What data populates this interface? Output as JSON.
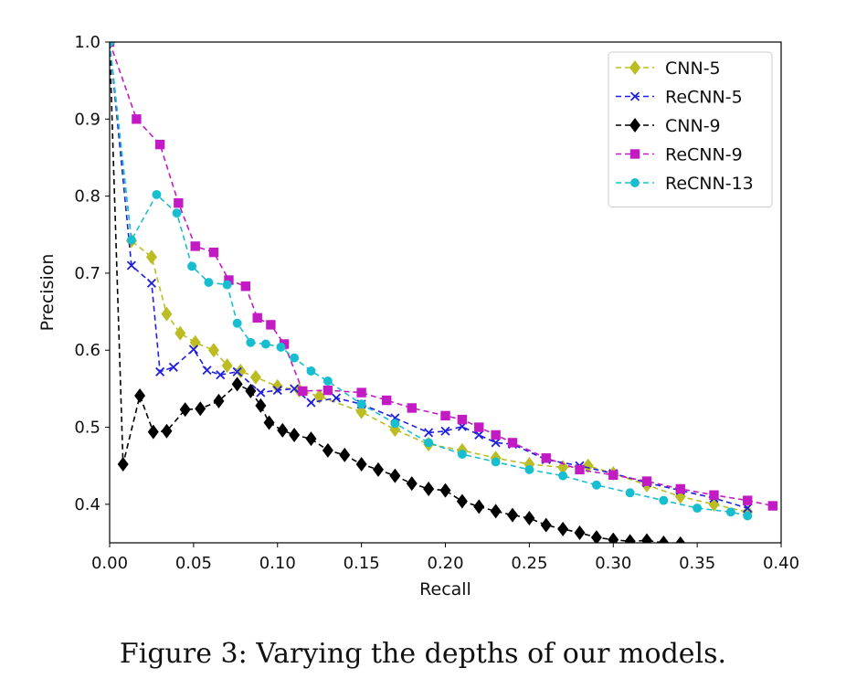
{
  "caption": "Figure 3: Varying the depths of our models.",
  "chart_data": {
    "type": "line",
    "xlabel": "Recall",
    "ylabel": "Precision",
    "xlim": [
      0.0,
      0.4
    ],
    "ylim": [
      0.35,
      1.0
    ],
    "xticks": [
      0.0,
      0.05,
      0.1,
      0.15,
      0.2,
      0.25,
      0.3,
      0.35,
      0.4
    ],
    "xtick_labels": [
      "0.00",
      "0.05",
      "0.10",
      "0.15",
      "0.20",
      "0.25",
      "0.30",
      "0.35",
      "0.40"
    ],
    "yticks": [
      0.4,
      0.5,
      0.6,
      0.7,
      0.8,
      0.9,
      1.0
    ],
    "ytick_labels": [
      "0.4",
      "0.5",
      "0.6",
      "0.7",
      "0.8",
      "0.9",
      "1.0"
    ],
    "grid": false,
    "legend_position": "top-right",
    "series": [
      {
        "name": "CNN-5",
        "color": "#bcbd22",
        "marker": "diamond",
        "x": [
          0.0,
          0.013,
          0.025,
          0.034,
          0.042,
          0.051,
          0.062,
          0.07,
          0.078,
          0.087,
          0.1,
          0.113,
          0.125,
          0.15,
          0.17,
          0.19,
          0.21,
          0.23,
          0.25,
          0.27,
          0.285,
          0.3,
          0.32,
          0.34,
          0.36,
          0.38
        ],
        "y": [
          1.0,
          0.742,
          0.721,
          0.647,
          0.622,
          0.61,
          0.6,
          0.58,
          0.573,
          0.565,
          0.553,
          0.548,
          0.54,
          0.52,
          0.497,
          0.478,
          0.47,
          0.46,
          0.452,
          0.448,
          0.45,
          0.44,
          0.425,
          0.41,
          0.4,
          0.39
        ]
      },
      {
        "name": "ReCNN-5",
        "color": "#1f1fe0",
        "marker": "x",
        "x": [
          0.0,
          0.013,
          0.025,
          0.03,
          0.038,
          0.05,
          0.058,
          0.066,
          0.076,
          0.09,
          0.1,
          0.11,
          0.12,
          0.135,
          0.15,
          0.17,
          0.19,
          0.2,
          0.21,
          0.22,
          0.23,
          0.24,
          0.26,
          0.28,
          0.3,
          0.32,
          0.34,
          0.36,
          0.38
        ],
        "y": [
          1.0,
          0.71,
          0.687,
          0.572,
          0.578,
          0.601,
          0.574,
          0.568,
          0.572,
          0.545,
          0.548,
          0.55,
          0.532,
          0.538,
          0.53,
          0.512,
          0.493,
          0.495,
          0.501,
          0.49,
          0.48,
          0.478,
          0.458,
          0.45,
          0.44,
          0.428,
          0.418,
          0.408,
          0.395
        ]
      },
      {
        "name": "CNN-9",
        "color": "#000000",
        "marker": "diamond",
        "x": [
          0.0,
          0.008,
          0.018,
          0.026,
          0.034,
          0.045,
          0.054,
          0.065,
          0.076,
          0.084,
          0.09,
          0.095,
          0.103,
          0.11,
          0.12,
          0.13,
          0.14,
          0.15,
          0.16,
          0.17,
          0.18,
          0.19,
          0.2,
          0.21,
          0.22,
          0.23,
          0.24,
          0.25,
          0.26,
          0.27,
          0.28,
          0.29,
          0.3,
          0.31,
          0.32,
          0.33,
          0.34
        ],
        "y": [
          1.0,
          0.452,
          0.541,
          0.494,
          0.495,
          0.523,
          0.524,
          0.534,
          0.556,
          0.547,
          0.528,
          0.506,
          0.496,
          0.49,
          0.485,
          0.47,
          0.464,
          0.452,
          0.445,
          0.437,
          0.427,
          0.42,
          0.418,
          0.404,
          0.397,
          0.391,
          0.386,
          0.382,
          0.373,
          0.368,
          0.363,
          0.357,
          0.354,
          0.352,
          0.353,
          0.35,
          0.349
        ]
      },
      {
        "name": "ReCNN-9",
        "color": "#c31bc3",
        "marker": "square",
        "x": [
          0.0,
          0.016,
          0.03,
          0.041,
          0.051,
          0.062,
          0.071,
          0.081,
          0.088,
          0.096,
          0.104,
          0.115,
          0.13,
          0.15,
          0.165,
          0.18,
          0.2,
          0.21,
          0.22,
          0.23,
          0.24,
          0.26,
          0.28,
          0.3,
          0.32,
          0.34,
          0.36,
          0.38,
          0.395
        ],
        "y": [
          1.0,
          0.9,
          0.867,
          0.791,
          0.735,
          0.727,
          0.691,
          0.683,
          0.642,
          0.633,
          0.608,
          0.547,
          0.548,
          0.545,
          0.535,
          0.525,
          0.515,
          0.51,
          0.5,
          0.49,
          0.48,
          0.46,
          0.445,
          0.438,
          0.43,
          0.42,
          0.412,
          0.405,
          0.398
        ]
      },
      {
        "name": "ReCNN-13",
        "color": "#17becf",
        "marker": "circle",
        "x": [
          0.0,
          0.013,
          0.028,
          0.04,
          0.049,
          0.059,
          0.07,
          0.076,
          0.084,
          0.093,
          0.102,
          0.11,
          0.12,
          0.13,
          0.15,
          0.17,
          0.19,
          0.21,
          0.23,
          0.25,
          0.27,
          0.29,
          0.31,
          0.33,
          0.35,
          0.37,
          0.38
        ],
        "y": [
          1.0,
          0.743,
          0.802,
          0.778,
          0.709,
          0.688,
          0.685,
          0.635,
          0.61,
          0.608,
          0.604,
          0.59,
          0.573,
          0.56,
          0.53,
          0.505,
          0.48,
          0.465,
          0.455,
          0.445,
          0.437,
          0.425,
          0.415,
          0.405,
          0.395,
          0.39,
          0.385
        ]
      }
    ]
  }
}
